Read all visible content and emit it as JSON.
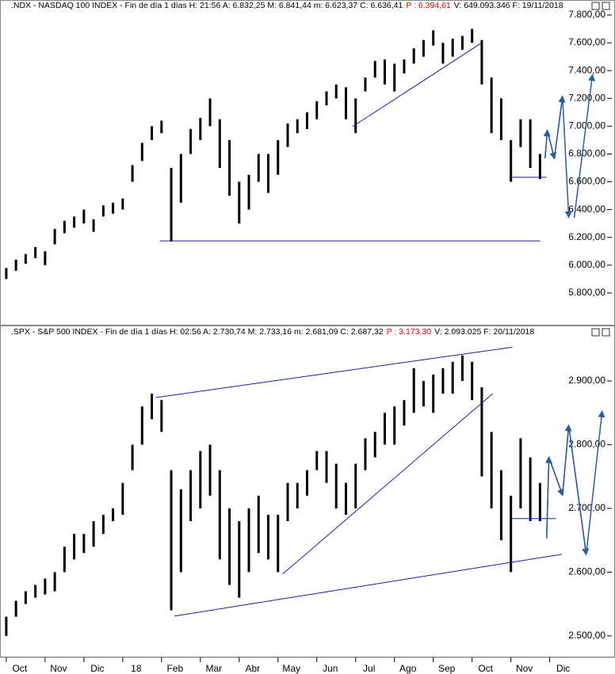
{
  "chart_data": [
    {
      "type": "highlow",
      "title": ".NDX - NASDAQ 100 INDEX - Fin de día 1 días H: 21:56 A: 6.832,25 M: 6.841,44 m: 6.623,37 C: 6.636,41",
      "title_price": "P : 6.394,61",
      "title_end": "V: 649.093.346 F: 19/11/2018",
      "color": "#000000",
      "xlim": [
        -0.1,
        15.6
      ],
      "ylim": [
        5600,
        7830
      ],
      "yticks": [
        {
          "value": 5800,
          "label": "5.800,00"
        },
        {
          "value": 6000,
          "label": "6.000,00"
        },
        {
          "value": 6200,
          "label": "6.200,00"
        },
        {
          "value": 6400,
          "label": "6.400,00"
        },
        {
          "value": 6600,
          "label": "6.600,00"
        },
        {
          "value": 6800,
          "label": "6.800,00"
        },
        {
          "value": 7000,
          "label": "7.000,00"
        },
        {
          "value": 7200,
          "label": "7.200,00"
        },
        {
          "value": 7400,
          "label": "7.400,00"
        },
        {
          "value": 7600,
          "label": "7.600,00"
        },
        {
          "value": 7800,
          "label": "7.800,00"
        }
      ],
      "x": [
        0,
        0.25,
        0.5,
        0.75,
        1,
        1.25,
        1.5,
        1.75,
        2,
        2.25,
        2.5,
        2.75,
        3,
        3.25,
        3.5,
        3.75,
        4,
        4.25,
        4.5,
        4.75,
        5,
        5.25,
        5.5,
        5.75,
        6,
        6.25,
        6.5,
        6.75,
        7,
        7.25,
        7.5,
        7.75,
        8,
        8.25,
        8.5,
        8.75,
        9,
        9.25,
        9.5,
        9.75,
        10,
        10.25,
        10.5,
        10.75,
        11,
        11.25,
        11.5,
        11.75,
        12,
        12.25,
        12.5,
        12.75,
        13,
        13.25,
        13.5,
        13.75
      ],
      "high": [
        5980,
        6040,
        6080,
        6130,
        6100,
        6260,
        6320,
        6350,
        6400,
        6330,
        6430,
        6450,
        6480,
        6720,
        6880,
        7000,
        7040,
        6700,
        6800,
        6980,
        7060,
        7200,
        7050,
        6900,
        6600,
        6650,
        6800,
        6800,
        6900,
        7020,
        7050,
        7100,
        7180,
        7250,
        7300,
        7280,
        7200,
        7350,
        7470,
        7480,
        7450,
        7480,
        7560,
        7620,
        7690,
        7600,
        7630,
        7650,
        7700,
        7620,
        7350,
        7200,
        6900,
        7050,
        7050,
        6800
      ],
      "low": [
        5900,
        5960,
        6010,
        6050,
        6000,
        6150,
        6230,
        6270,
        6300,
        6240,
        6350,
        6370,
        6400,
        6600,
        6750,
        6900,
        6950,
        6170,
        6450,
        6800,
        6900,
        7000,
        6700,
        6500,
        6300,
        6400,
        6600,
        6520,
        6650,
        6850,
        6950,
        6980,
        7050,
        7150,
        7200,
        7050,
        6950,
        7250,
        7350,
        7300,
        7250,
        7380,
        7450,
        7500,
        7580,
        7450,
        7500,
        7550,
        7600,
        7300,
        6950,
        6900,
        6600,
        6850,
        6700,
        6620
      ],
      "line_color": "#1a1aa6",
      "lines": [
        {
          "x": [
            3.96,
            13.76
          ],
          "y": [
            6175,
            6175
          ]
        },
        {
          "x": [
            8.92,
            12.22
          ],
          "y": [
            6997,
            7595
          ]
        },
        {
          "x": [
            12.96,
            13.92
          ],
          "y": [
            6632,
            6632
          ]
        }
      ],
      "projection_color": "#2b5c9e",
      "projections": [
        {
          "x": [
            13.88,
            13.94,
            14.12,
            14.33,
            14.49
          ],
          "y": [
            6769,
            6968,
            6769,
            7213,
            6347
          ]
        },
        {
          "x": [
            14.63,
            15.1
          ],
          "y": [
            6341,
            7367
          ]
        }
      ]
    },
    {
      "type": "highlow",
      "title": ".SPX - S&P 500 INDEX - Fin de día 1 días H: 02:56 A: 2.730,74 M: 2.733,16 m: 2.681,09 C: 2.687,32",
      "title_price": "P : 3.173,30",
      "title_end": "V: 2.093.025 F: 20/11/2018",
      "color": "#000000",
      "xlim": [
        -0.1,
        15.6
      ],
      "xticks": [
        {
          "value": 0,
          "label": "Oct"
        },
        {
          "value": 1,
          "label": "Nov"
        },
        {
          "value": 2,
          "label": "Dic"
        },
        {
          "value": 3,
          "label": "18"
        },
        {
          "value": 4,
          "label": "Feb"
        },
        {
          "value": 5,
          "label": "Mar"
        },
        {
          "value": 6,
          "label": "Abr"
        },
        {
          "value": 7,
          "label": "May"
        },
        {
          "value": 8,
          "label": "Jun"
        },
        {
          "value": 9,
          "label": "Jul"
        },
        {
          "value": 10,
          "label": "Ago"
        },
        {
          "value": 11,
          "label": "Sep"
        },
        {
          "value": 12,
          "label": "Oct"
        },
        {
          "value": 13,
          "label": "Nov"
        },
        {
          "value": 14,
          "label": "Dic"
        }
      ],
      "ylim": [
        2470,
        2960
      ],
      "yticks": [
        {
          "value": 2500,
          "label": "2.500,00"
        },
        {
          "value": 2600,
          "label": "2.600,00"
        },
        {
          "value": 2700,
          "label": "2.700,00"
        },
        {
          "value": 2800,
          "label": "2.800,00"
        },
        {
          "value": 2900,
          "label": "2.900,00"
        }
      ],
      "x": [
        0,
        0.25,
        0.5,
        0.75,
        1,
        1.25,
        1.5,
        1.75,
        2,
        2.25,
        2.5,
        2.75,
        3,
        3.25,
        3.5,
        3.75,
        4,
        4.25,
        4.5,
        4.75,
        5,
        5.25,
        5.5,
        5.75,
        6,
        6.25,
        6.5,
        6.75,
        7,
        7.25,
        7.5,
        7.75,
        8,
        8.25,
        8.5,
        8.75,
        9,
        9.25,
        9.5,
        9.75,
        10,
        10.25,
        10.5,
        10.75,
        11,
        11.25,
        11.5,
        11.75,
        12,
        12.25,
        12.5,
        12.75,
        13,
        13.25,
        13.5,
        13.75
      ],
      "high": [
        2530,
        2555,
        2570,
        2580,
        2590,
        2600,
        2640,
        2660,
        2660,
        2680,
        2690,
        2700,
        2740,
        2800,
        2860,
        2880,
        2870,
        2760,
        2730,
        2760,
        2790,
        2800,
        2760,
        2700,
        2680,
        2700,
        2720,
        2690,
        2690,
        2740,
        2740,
        2760,
        2790,
        2790,
        2770,
        2740,
        2770,
        2810,
        2820,
        2850,
        2860,
        2870,
        2920,
        2900,
        2910,
        2920,
        2930,
        2940,
        2930,
        2890,
        2820,
        2760,
        2720,
        2810,
        2780,
        2740
      ],
      "low": [
        2500,
        2530,
        2550,
        2560,
        2565,
        2570,
        2600,
        2620,
        2630,
        2640,
        2660,
        2680,
        2690,
        2760,
        2800,
        2840,
        2820,
        2540,
        2600,
        2680,
        2700,
        2720,
        2620,
        2580,
        2560,
        2600,
        2630,
        2620,
        2600,
        2680,
        2700,
        2720,
        2760,
        2740,
        2700,
        2690,
        2700,
        2760,
        2780,
        2800,
        2800,
        2830,
        2850,
        2860,
        2850,
        2880,
        2880,
        2900,
        2870,
        2750,
        2700,
        2650,
        2600,
        2700,
        2680,
        2680
      ],
      "line_color": "#1a1aa6",
      "lines": [
        {
          "x": [
            3.86,
            13.04
          ],
          "y": [
            2874,
            2953
          ]
        },
        {
          "x": [
            4.33,
            14.31
          ],
          "y": [
            2531,
            2628
          ]
        },
        {
          "x": [
            7.12,
            12.53
          ],
          "y": [
            2597,
            2880
          ]
        },
        {
          "x": [
            13.0,
            14.16
          ],
          "y": [
            2684,
            2684
          ]
        }
      ],
      "projection_color": "#2b5c9e",
      "projections": [
        {
          "x": [
            13.92,
            13.98,
            14.33,
            14.49,
            14.94,
            15.35
          ],
          "y": [
            2653,
            2780,
            2721,
            2830,
            2628,
            2852
          ]
        }
      ]
    }
  ]
}
